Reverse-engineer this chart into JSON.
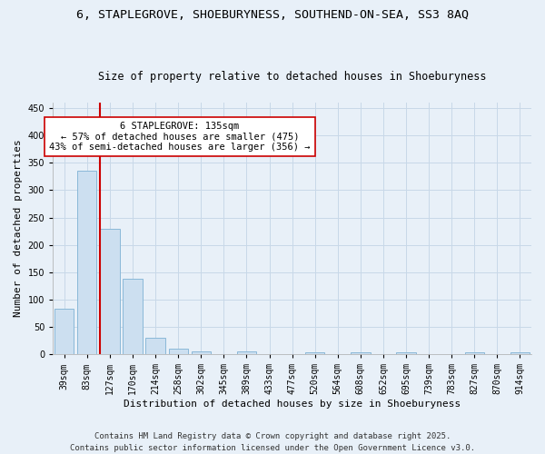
{
  "title_line1": "6, STAPLEGROVE, SHOEBURYNESS, SOUTHEND-ON-SEA, SS3 8AQ",
  "title_line2": "Size of property relative to detached houses in Shoeburyness",
  "xlabel": "Distribution of detached houses by size in Shoeburyness",
  "ylabel": "Number of detached properties",
  "bins": [
    "39sqm",
    "83sqm",
    "127sqm",
    "170sqm",
    "214sqm",
    "258sqm",
    "302sqm",
    "345sqm",
    "389sqm",
    "433sqm",
    "477sqm",
    "520sqm",
    "564sqm",
    "608sqm",
    "652sqm",
    "695sqm",
    "739sqm",
    "783sqm",
    "827sqm",
    "870sqm",
    "914sqm"
  ],
  "values": [
    84,
    336,
    229,
    138,
    30,
    10,
    5,
    0,
    5,
    0,
    0,
    3,
    0,
    3,
    0,
    3,
    0,
    0,
    3,
    0,
    3
  ],
  "bar_color": "#ccdff0",
  "bar_edge_color": "#8ab8d8",
  "grid_color": "#c8d8e8",
  "background_color": "#e8f0f8",
  "vline_color": "#cc0000",
  "annotation_text": "6 STAPLEGROVE: 135sqm\n← 57% of detached houses are smaller (475)\n43% of semi-detached houses are larger (356) →",
  "annotation_box_color": "#ffffff",
  "annotation_box_edge": "#cc0000",
  "ylim": [
    0,
    460
  ],
  "yticks": [
    0,
    50,
    100,
    150,
    200,
    250,
    300,
    350,
    400,
    450
  ],
  "footer_text": "Contains HM Land Registry data © Crown copyright and database right 2025.\nContains public sector information licensed under the Open Government Licence v3.0.",
  "title_fontsize": 9.5,
  "subtitle_fontsize": 8.5,
  "axis_label_fontsize": 8,
  "tick_fontsize": 7,
  "annotation_fontsize": 7.5,
  "footer_fontsize": 6.5
}
